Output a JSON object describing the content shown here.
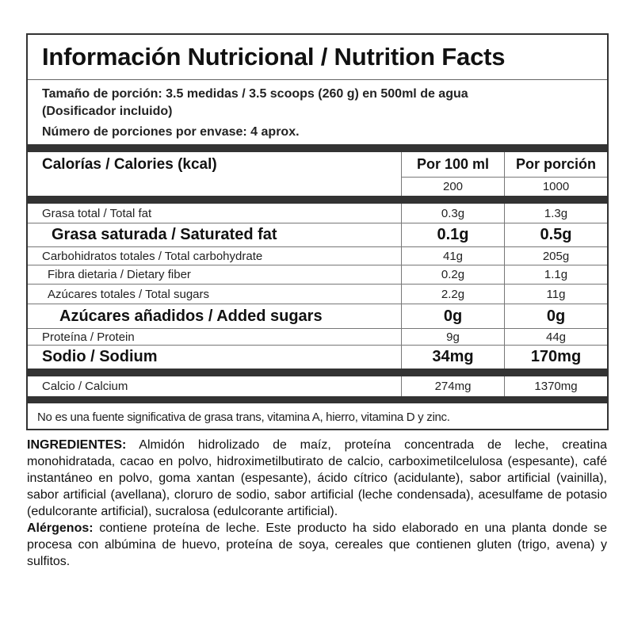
{
  "title": "Información Nutricional / Nutrition Facts",
  "serving": {
    "size_line1": "Tamaño de porción: 3.5 medidas / 3.5 scoops (260 g) en 500ml de agua",
    "size_line2": "(Dosificador incluido)",
    "servings": "Número de porciones por envase: 4 aprox."
  },
  "calories": {
    "label": "Calorías / Calories (kcal)",
    "col1_header": "Por 100 ml",
    "col2_header": "Por porción",
    "per100": "200",
    "perServing": "1000"
  },
  "nutrients": [
    {
      "label": "Grasa total / Total fat",
      "per100": "0.3g",
      "perServing": "1.3g"
    },
    {
      "label": "Grasa saturada / Saturated fat",
      "per100": "0.1g",
      "perServing": "0.5g"
    },
    {
      "label": "Carbohidratos totales / Total carbohydrate",
      "per100": "41g",
      "perServing": "205g"
    },
    {
      "label": "Fibra dietaria / Dietary fiber",
      "per100": "0.2g",
      "perServing": "1.1g"
    },
    {
      "label": "Azúcares totales / Total sugars",
      "per100": "2.2g",
      "perServing": "11g"
    },
    {
      "label": "Azúcares añadidos / Added sugars",
      "per100": "0g",
      "perServing": "0g"
    },
    {
      "label": "Proteína / Protein",
      "per100": "9g",
      "perServing": "44g"
    },
    {
      "label": "Sodio / Sodium",
      "per100": "34mg",
      "perServing": "170mg"
    },
    {
      "label": "Calcio / Calcium",
      "per100": "274mg",
      "perServing": "1370mg"
    }
  ],
  "footnote": "No es una fuente significativa de grasa trans, vitamina  A, hierro, vitamina D y zinc.",
  "ingredients": {
    "label": "INGREDIENTES:",
    "text": " Almidón hidrolizado de maíz, proteína concentrada de leche, creatina monohidratada, cacao en polvo, hidroximetilbutirato de calcio, carboximetilcelulosa (espesante), café instantáneo en polvo, goma xantan (espesante), ácido cítrico (acidulante), sabor artificial (vainilla), sabor artificial (avellana), cloruro de sodio, sabor artificial (leche condensada), acesulfame de potasio (edulcorante artificial), sucralosa (edulcorante artificial).",
    "allergens_label": "Alérgenos:",
    "allergens_text": " contiene proteína de leche. Este producto ha sido elaborado en una planta donde se procesa con albúmina de huevo, proteína de soya, cereales que contienen gluten (trigo, avena) y sulfitos."
  }
}
